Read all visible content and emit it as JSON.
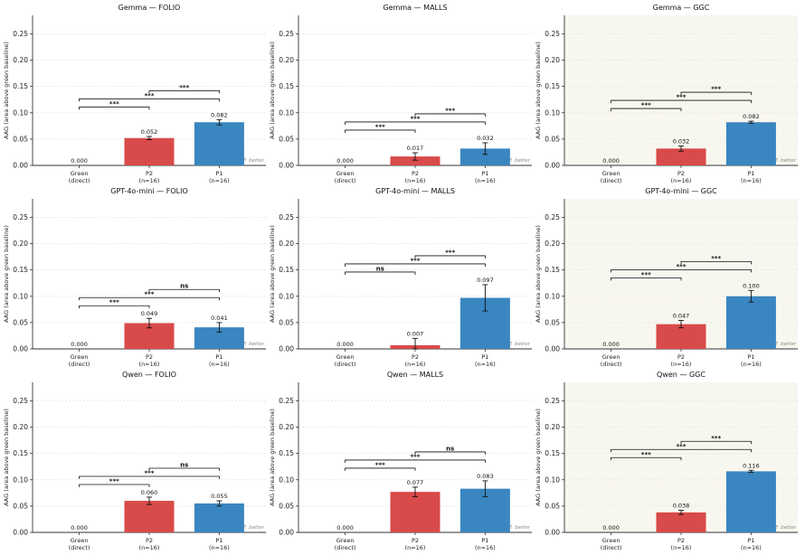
{
  "figure": {
    "yaxis_label": "AAG (area above green baseline)",
    "better_label": "↑ better",
    "categories": [
      {
        "name": "Green",
        "sub": "(direct)"
      },
      {
        "name": "P2",
        "sub": "(n=16)"
      },
      {
        "name": "P1",
        "sub": "(n=16)"
      }
    ],
    "colors": {
      "p2_bar": "#d94a4a",
      "p1_bar": "#3a86c0",
      "ggc_background": "#f8f7ef",
      "axis": "#333333",
      "grid": "#e4e4e4"
    },
    "yticks": [
      "0.00",
      "0.05",
      "0.10",
      "0.15",
      "0.20",
      "0.25"
    ]
  },
  "chart_data": [
    {
      "type": "bar",
      "title": "Gemma — FOLIO",
      "categories": [
        "Green",
        "P2",
        "P1"
      ],
      "values": [
        0.0,
        0.052,
        0.082
      ],
      "value_labels": [
        "0.000",
        "0.052",
        "0.082"
      ],
      "errors": [
        0.0,
        0.003,
        0.005
      ],
      "ylim": [
        0,
        0.285
      ],
      "significance": [
        {
          "pair": [
            "Green",
            "P2"
          ],
          "label": "***"
        },
        {
          "pair": [
            "Green",
            "P1"
          ],
          "label": "***"
        },
        {
          "pair": [
            "P2",
            "P1"
          ],
          "label": "***"
        }
      ]
    },
    {
      "type": "bar",
      "title": "Gemma — MALLS",
      "categories": [
        "Green",
        "P2",
        "P1"
      ],
      "values": [
        0.0,
        0.017,
        0.032
      ],
      "value_labels": [
        "0.000",
        "0.017",
        "0.032"
      ],
      "errors": [
        0.0,
        0.007,
        0.011
      ],
      "ylim": [
        0,
        0.285
      ],
      "significance": [
        {
          "pair": [
            "Green",
            "P2"
          ],
          "label": "***"
        },
        {
          "pair": [
            "Green",
            "P1"
          ],
          "label": "***"
        },
        {
          "pair": [
            "P2",
            "P1"
          ],
          "label": "***"
        }
      ]
    },
    {
      "type": "bar",
      "title": "Gemma — GGC",
      "categories": [
        "Green",
        "P2",
        "P1"
      ],
      "values": [
        0.0,
        0.032,
        0.082
      ],
      "value_labels": [
        "0.000",
        "0.032",
        "0.082"
      ],
      "errors": [
        0.0,
        0.005,
        0.002
      ],
      "ylim": [
        0,
        0.285
      ],
      "significance": [
        {
          "pair": [
            "Green",
            "P2"
          ],
          "label": "***"
        },
        {
          "pair": [
            "Green",
            "P1"
          ],
          "label": "***"
        },
        {
          "pair": [
            "P2",
            "P1"
          ],
          "label": "***"
        }
      ]
    },
    {
      "type": "bar",
      "title": "GPT-4o-mini — FOLIO",
      "categories": [
        "Green",
        "P2",
        "P1"
      ],
      "values": [
        0.0,
        0.049,
        0.041
      ],
      "value_labels": [
        "0.000",
        "0.049",
        "0.041"
      ],
      "errors": [
        0.0,
        0.009,
        0.009
      ],
      "ylim": [
        0,
        0.285
      ],
      "significance": [
        {
          "pair": [
            "Green",
            "P2"
          ],
          "label": "***"
        },
        {
          "pair": [
            "Green",
            "P1"
          ],
          "label": "***"
        },
        {
          "pair": [
            "P2",
            "P1"
          ],
          "label": "ns"
        }
      ]
    },
    {
      "type": "bar",
      "title": "GPT-4o-mini — MALLS",
      "categories": [
        "Green",
        "P2",
        "P1"
      ],
      "values": [
        0.0,
        0.007,
        0.097
      ],
      "value_labels": [
        "0.000",
        "0.007",
        "0.097"
      ],
      "errors": [
        0.0,
        0.013,
        0.025
      ],
      "ylim": [
        0,
        0.285
      ],
      "significance": [
        {
          "pair": [
            "Green",
            "P2"
          ],
          "label": "ns"
        },
        {
          "pair": [
            "Green",
            "P1"
          ],
          "label": "***"
        },
        {
          "pair": [
            "P2",
            "P1"
          ],
          "label": "***"
        }
      ]
    },
    {
      "type": "bar",
      "title": "GPT-4o-mini — GGC",
      "categories": [
        "Green",
        "P2",
        "P1"
      ],
      "values": [
        0.0,
        0.047,
        0.1
      ],
      "value_labels": [
        "0.000",
        "0.047",
        "0.100"
      ],
      "errors": [
        0.0,
        0.007,
        0.011
      ],
      "ylim": [
        0,
        0.285
      ],
      "significance": [
        {
          "pair": [
            "Green",
            "P2"
          ],
          "label": "***"
        },
        {
          "pair": [
            "Green",
            "P1"
          ],
          "label": "***"
        },
        {
          "pair": [
            "P2",
            "P1"
          ],
          "label": "***"
        }
      ]
    },
    {
      "type": "bar",
      "title": "Qwen — FOLIO",
      "categories": [
        "Green",
        "P2",
        "P1"
      ],
      "values": [
        0.0,
        0.06,
        0.055
      ],
      "value_labels": [
        "0.000",
        "0.060",
        "0.055"
      ],
      "errors": [
        0.0,
        0.007,
        0.005
      ],
      "ylim": [
        0,
        0.285
      ],
      "significance": [
        {
          "pair": [
            "Green",
            "P2"
          ],
          "label": "***"
        },
        {
          "pair": [
            "Green",
            "P1"
          ],
          "label": "***"
        },
        {
          "pair": [
            "P2",
            "P1"
          ],
          "label": "ns"
        }
      ]
    },
    {
      "type": "bar",
      "title": "Qwen — MALLS",
      "categories": [
        "Green",
        "P2",
        "P1"
      ],
      "values": [
        0.0,
        0.077,
        0.083
      ],
      "value_labels": [
        "0.000",
        "0.077",
        "0.083"
      ],
      "errors": [
        0.0,
        0.009,
        0.015
      ],
      "ylim": [
        0,
        0.285
      ],
      "significance": [
        {
          "pair": [
            "Green",
            "P2"
          ],
          "label": "***"
        },
        {
          "pair": [
            "Green",
            "P1"
          ],
          "label": "***"
        },
        {
          "pair": [
            "P2",
            "P1"
          ],
          "label": "ns"
        }
      ]
    },
    {
      "type": "bar",
      "title": "Qwen — GGC",
      "categories": [
        "Green",
        "P2",
        "P1"
      ],
      "values": [
        0.0,
        0.038,
        0.116
      ],
      "value_labels": [
        "0.000",
        "0.038",
        "0.116"
      ],
      "errors": [
        0.0,
        0.004,
        0.002
      ],
      "ylim": [
        0,
        0.285
      ],
      "significance": [
        {
          "pair": [
            "Green",
            "P2"
          ],
          "label": "***"
        },
        {
          "pair": [
            "Green",
            "P1"
          ],
          "label": "***"
        },
        {
          "pair": [
            "P2",
            "P1"
          ],
          "label": "***"
        }
      ]
    }
  ]
}
